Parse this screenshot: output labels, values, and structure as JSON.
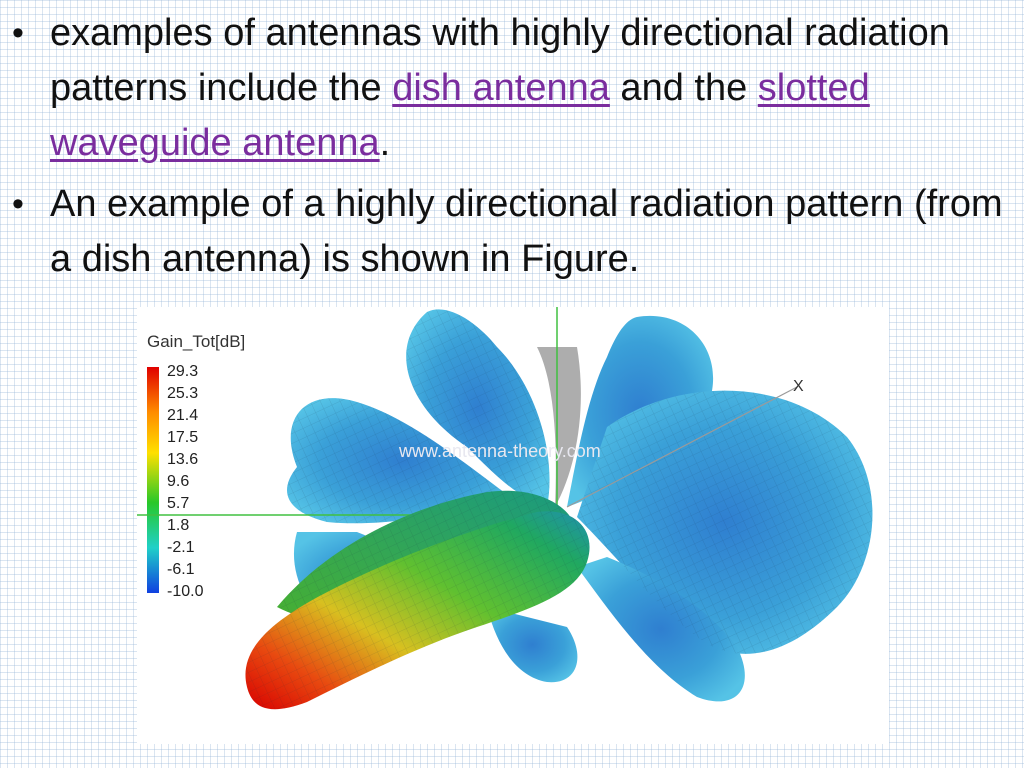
{
  "bullets": [
    {
      "marker": "•",
      "text_1": "examples of antennas with highly directional radiation patterns include the ",
      "link_1": "dish antenna",
      "text_2": " and the ",
      "link_2": "slotted waveguide antenna",
      "text_3": "."
    },
    {
      "marker": "•",
      "text": "An example of a highly directional radiation pattern (from a dish antenna) is shown in Figure."
    }
  ],
  "figure": {
    "legend_title": "Gain_Tot[dB]",
    "legend_ticks": [
      "29.3",
      "25.3",
      "21.4",
      "17.5",
      "13.6",
      "9.6",
      "5.7",
      "1.8",
      "-2.1",
      "-6.1",
      "-10.0"
    ],
    "watermark": "www.antenna-theory.com",
    "axis_label": "X",
    "colors": {
      "max": "#e00000",
      "high": "#ff8c00",
      "mid_high": "#ffe000",
      "mid": "#28c828",
      "mid_low": "#20d0c8",
      "low": "#1040e0",
      "side_lobe": "#3aa0d8"
    }
  }
}
